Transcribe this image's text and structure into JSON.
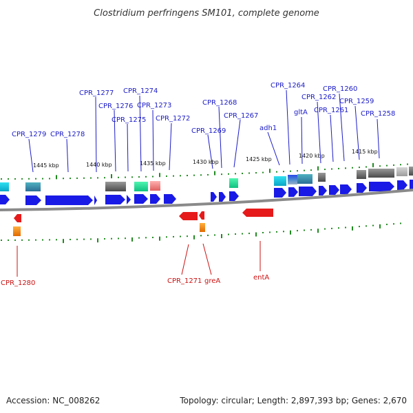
{
  "header": {
    "title": "Clostridium perfringens SM101, complete genome"
  },
  "footer": {
    "accession": "Accession: NC_008262",
    "summary": "Topology: circular; Length: 2,897,393 bp; Genes: 2,670"
  },
  "ruler": {
    "ticks": [
      "1445 kbp",
      "1440 kbp",
      "1435 kbp",
      "1430 kbp",
      "1425 kbp",
      "1420 kbp",
      "1415 kbp"
    ]
  },
  "colors": {
    "forward_gene": "#1a1ae6",
    "reverse_gene": "#e61a1a",
    "backbone": "#8a8a8a",
    "forward_label": "#1a1ac8",
    "reverse_label": "#cc1111",
    "tick": "#1f8a1f"
  },
  "forward_labels": [
    "CPR_1279",
    "CPR_1278",
    "CPR_1277",
    "CPR_1276",
    "CPR_1275",
    "CPR_1274",
    "CPR_1273",
    "CPR_1272",
    "CPR_1269",
    "CPR_1268",
    "CPR_1267",
    "adh1",
    "CPR_1264",
    "gltA",
    "CPR_1262",
    "CPR_1261",
    "CPR_1260",
    "CPR_1259",
    "CPR_1258"
  ],
  "reverse_labels": [
    "CPR_1280",
    "CPR_1271",
    "greA",
    "entA"
  ]
}
